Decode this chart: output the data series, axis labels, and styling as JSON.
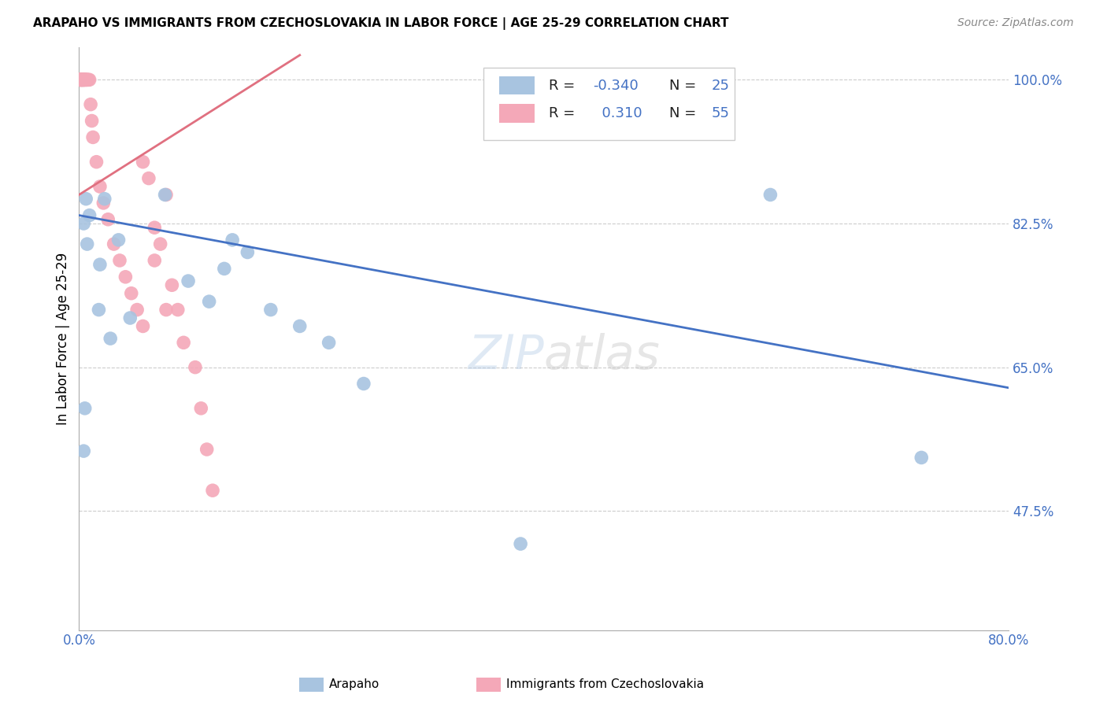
{
  "title": "ARAPAHO VS IMMIGRANTS FROM CZECHOSLOVAKIA IN LABOR FORCE | AGE 25-29 CORRELATION CHART",
  "source": "Source: ZipAtlas.com",
  "ylabel": "In Labor Force | Age 25-29",
  "xlim": [
    0.0,
    0.8
  ],
  "ylim": [
    0.33,
    1.04
  ],
  "yticks": [
    0.475,
    0.65,
    0.825,
    1.0
  ],
  "ytick_labels": [
    "47.5%",
    "65.0%",
    "82.5%",
    "100.0%"
  ],
  "xticks": [
    0.0,
    0.1,
    0.2,
    0.3,
    0.4,
    0.5,
    0.6,
    0.7,
    0.8
  ],
  "xtick_labels": [
    "0.0%",
    "",
    "",
    "",
    "",
    "",
    "",
    "",
    "80.0%"
  ],
  "blue_color": "#a8c4e0",
  "pink_color": "#f4a8b8",
  "blue_line_color": "#4472c4",
  "pink_line_color": "#e07080",
  "legend_R_blue": "-0.340",
  "legend_N_blue": "25",
  "legend_R_pink": "0.310",
  "legend_N_pink": "55",
  "watermark": "ZIPatlas",
  "arapaho_x": [
    0.004,
    0.009,
    0.006,
    0.007,
    0.005,
    0.022,
    0.018,
    0.034,
    0.044,
    0.074,
    0.094,
    0.112,
    0.125,
    0.132,
    0.004,
    0.017,
    0.027,
    0.145,
    0.165,
    0.19,
    0.215,
    0.245,
    0.38,
    0.595,
    0.725
  ],
  "arapaho_y": [
    0.825,
    0.835,
    0.855,
    0.8,
    0.6,
    0.855,
    0.775,
    0.805,
    0.71,
    0.86,
    0.755,
    0.73,
    0.77,
    0.805,
    0.548,
    0.72,
    0.685,
    0.79,
    0.72,
    0.7,
    0.68,
    0.63,
    0.435,
    0.86,
    0.54
  ],
  "czech_x": [
    0.001,
    0.001,
    0.001,
    0.001,
    0.001,
    0.002,
    0.002,
    0.002,
    0.002,
    0.002,
    0.003,
    0.003,
    0.003,
    0.003,
    0.003,
    0.004,
    0.004,
    0.004,
    0.004,
    0.005,
    0.005,
    0.005,
    0.006,
    0.006,
    0.007,
    0.007,
    0.008,
    0.009,
    0.01,
    0.011,
    0.012,
    0.015,
    0.018,
    0.021,
    0.025,
    0.03,
    0.035,
    0.04,
    0.045,
    0.05,
    0.055,
    0.06,
    0.065,
    0.07,
    0.075,
    0.08,
    0.085,
    0.09,
    0.1,
    0.105,
    0.11,
    0.115,
    0.055,
    0.065,
    0.075
  ],
  "czech_y": [
    1.0,
    1.0,
    1.0,
    1.0,
    1.0,
    1.0,
    1.0,
    1.0,
    1.0,
    1.0,
    1.0,
    1.0,
    1.0,
    1.0,
    1.0,
    1.0,
    1.0,
    1.0,
    1.0,
    1.0,
    1.0,
    1.0,
    1.0,
    1.0,
    1.0,
    1.0,
    1.0,
    1.0,
    0.97,
    0.95,
    0.93,
    0.9,
    0.87,
    0.85,
    0.83,
    0.8,
    0.78,
    0.76,
    0.74,
    0.72,
    0.9,
    0.88,
    0.82,
    0.8,
    0.86,
    0.75,
    0.72,
    0.68,
    0.65,
    0.6,
    0.55,
    0.5,
    0.7,
    0.78,
    0.72
  ],
  "pink_line_x0": 0.0,
  "pink_line_y0": 0.86,
  "pink_line_x1": 0.19,
  "pink_line_y1": 1.03,
  "blue_line_x0": 0.0,
  "blue_line_y0": 0.835,
  "blue_line_x1": 0.8,
  "blue_line_y1": 0.625
}
